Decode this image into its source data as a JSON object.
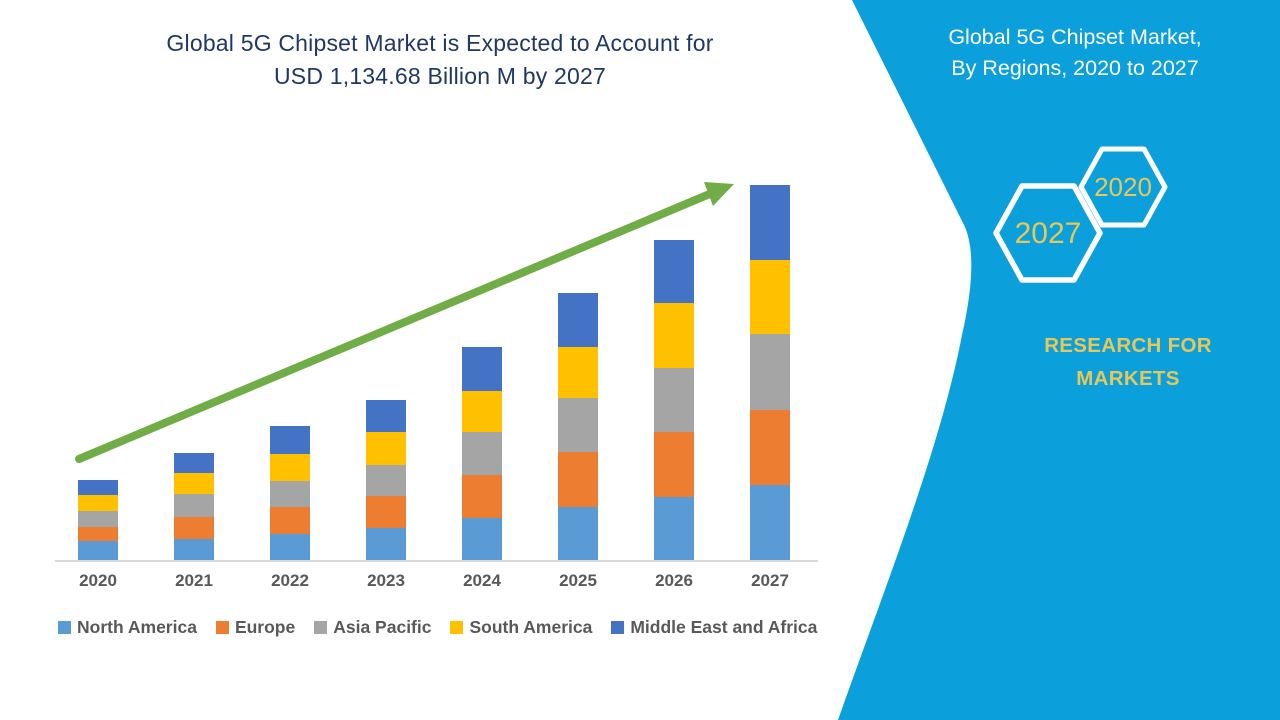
{
  "left_title": {
    "line1": "Global 5G Chipset Market is Expected to Account for",
    "line2": "USD 1,134.68 Billion M by 2027",
    "color": "#1F3864"
  },
  "panel": {
    "title_line1": "Global 5G Chipset Market,",
    "title_line2": "By Regions, 2020 to 2027",
    "hexagon_front_label": "2027",
    "hexagon_back_label": "2020",
    "brand_line1": "RESEARCH FOR",
    "brand_line2": "MARKETS",
    "bg_color": "#0BA0DC",
    "accent_text_color": "#E6C758"
  },
  "chart_data": {
    "type": "bar",
    "stacked": true,
    "unit": "USD Billion",
    "categories": [
      "2020",
      "2021",
      "2022",
      "2023",
      "2024",
      "2025",
      "2026",
      "2027"
    ],
    "series": [
      {
        "name": "North America",
        "color": "#5B9BD5",
        "values": [
          57.5,
          62.6,
          79.6,
          95.6,
          128.0,
          161.3,
          191.5,
          227.0
        ]
      },
      {
        "name": "Europe",
        "color": "#ED7D31",
        "values": [
          42.4,
          67.5,
          80.8,
          98.9,
          129.2,
          166.4,
          196.7,
          227.0
        ]
      },
      {
        "name": "Asia Pacific",
        "color": "#A5A5A5",
        "values": [
          48.4,
          68.7,
          77.8,
          92.9,
          131.0,
          161.3,
          193.7,
          228.7
        ]
      },
      {
        "name": "South America",
        "color": "#FFC000",
        "values": [
          47.5,
          63.5,
          83.5,
          100.8,
          123.2,
          154.3,
          194.6,
          225.1
        ]
      },
      {
        "name": "Middle East and Africa",
        "color": "#4472C4",
        "values": [
          46.3,
          60.5,
          82.9,
          95.9,
          134.1,
          163.4,
          191.8,
          227.0
        ]
      }
    ],
    "totals": [
      242.1,
      322.8,
      404.6,
      484.1,
      645.5,
      806.7,
      968.3,
      1134.8
    ],
    "ylim": [
      0,
      1140
    ],
    "grid": false,
    "legend_position": "bottom",
    "trend_arrow": true,
    "arrow_color": "#70AD47",
    "axis_text_color": "#595959"
  }
}
